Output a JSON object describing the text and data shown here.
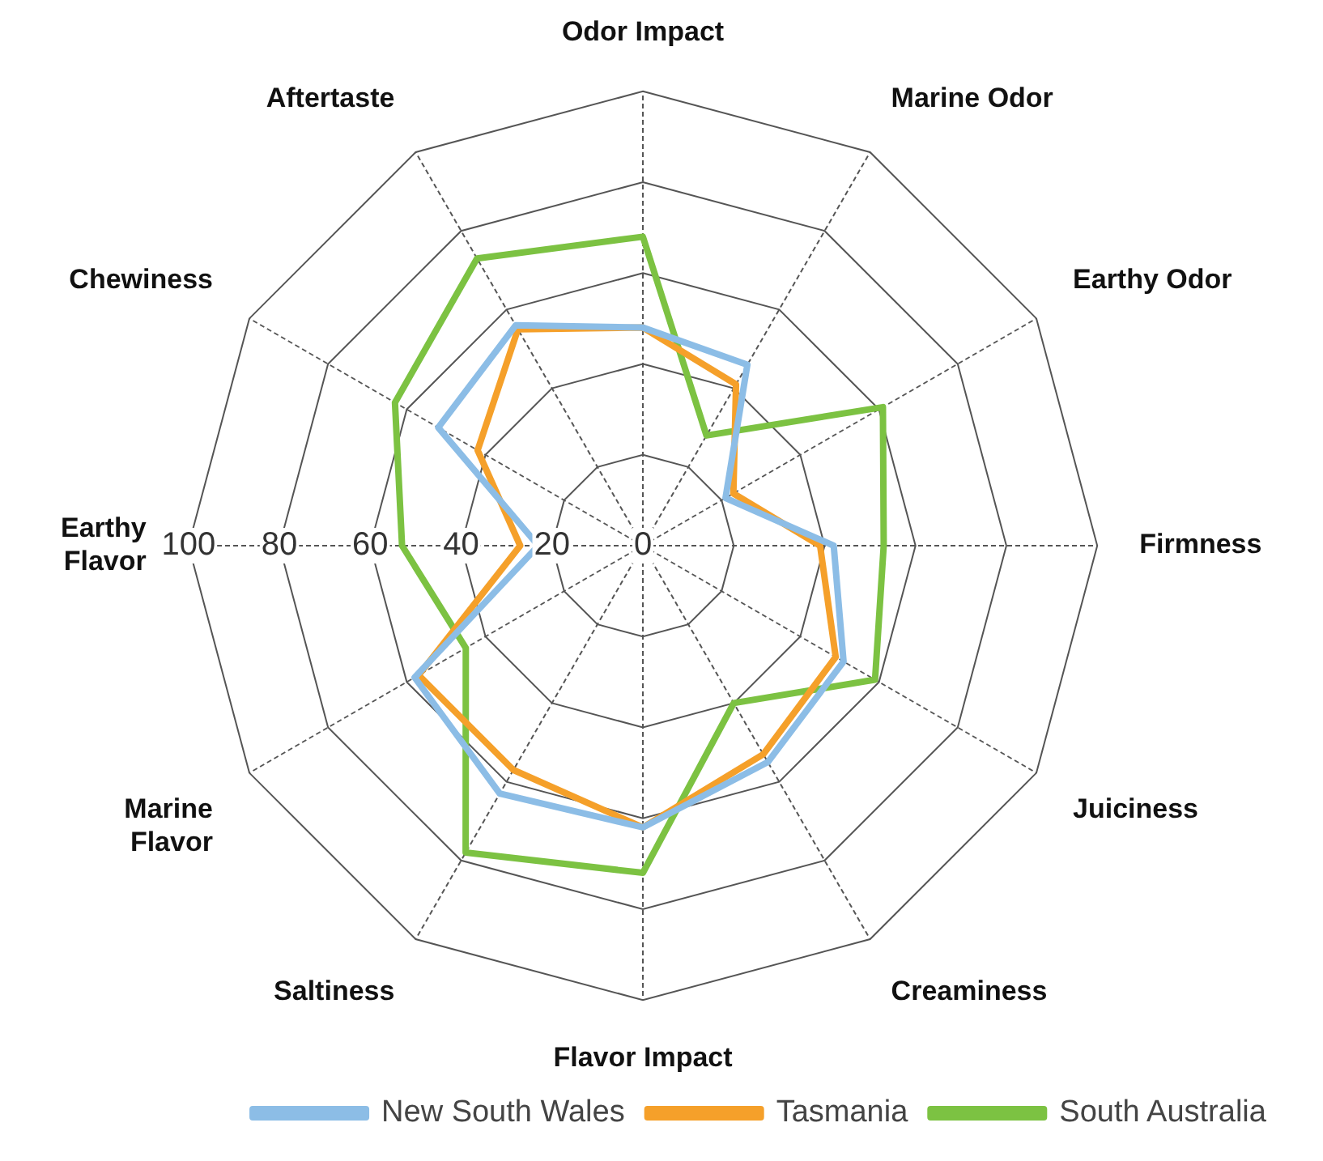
{
  "chart_data": {
    "type": "radar",
    "categories": [
      "Odor Impact",
      "Marine Odor",
      "Earthy Odor",
      "Firmness",
      "Juiciness",
      "Creaminess",
      "Flavor Impact",
      "Saltiness",
      "Marine Flavor",
      "Earthy Flavor",
      "Chewiness",
      "Aftertaste"
    ],
    "series": [
      {
        "name": "New South Wales",
        "color": "#8cbde6",
        "values": [
          48,
          46,
          21,
          42,
          51,
          55,
          62,
          63,
          58,
          23,
          52,
          56
        ]
      },
      {
        "name": "Tasmania",
        "color": "#f5a02a",
        "values": [
          48,
          41,
          23,
          39,
          49,
          53,
          62,
          57,
          57,
          27,
          42,
          55
        ]
      },
      {
        "name": "South Australia",
        "color": "#7cc242",
        "values": [
          68,
          28,
          61,
          53,
          59,
          40,
          72,
          78,
          45,
          53,
          63,
          73
        ]
      }
    ],
    "ylim": [
      0,
      100
    ],
    "yticks": [
      0,
      20,
      40,
      60,
      80,
      100
    ],
    "grid": true,
    "legend": "bottom",
    "marker": "none",
    "line_style": "solid"
  }
}
